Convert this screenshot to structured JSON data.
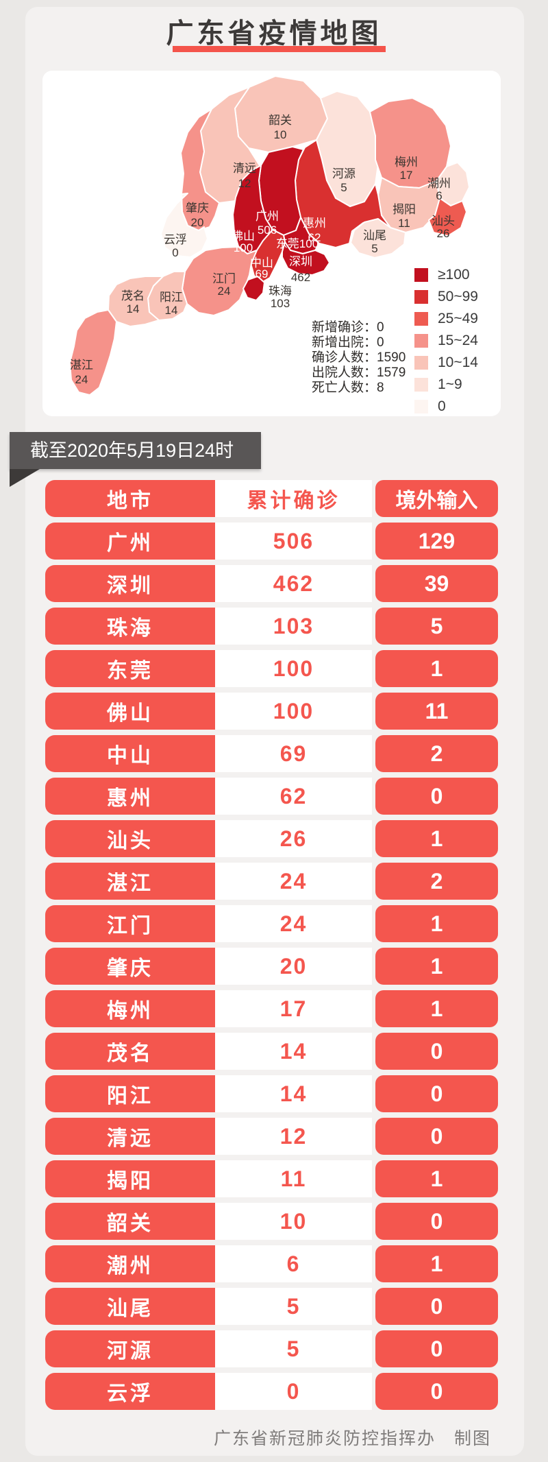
{
  "page": {
    "title": "广东省疫情地图",
    "footer": "广东省新冠肺炎防控指挥办　制图"
  },
  "banner": {
    "text": "截至2020年5月19日24时"
  },
  "colors": {
    "page_bg": "#eae8e6",
    "card_bg": "#f3f1f0",
    "accent_red": "#f4564e",
    "underline_red": "#f4544b",
    "banner_bg": "#595656",
    "banner_fold": "#3d3a39",
    "map_text_dark": "#3a3530",
    "map_text_light": "#ffffff"
  },
  "map": {
    "stats": [
      {
        "label": "新增确诊",
        "value": "0"
      },
      {
        "label": "新增出院",
        "value": "0"
      },
      {
        "label": "确诊人数",
        "value": "1590"
      },
      {
        "label": "出院人数",
        "value": "1579"
      },
      {
        "label": "死亡人数",
        "value": "8"
      }
    ],
    "legend": [
      {
        "range": "≥100",
        "color": "#c2101f"
      },
      {
        "range": "50~99",
        "color": "#d93030"
      },
      {
        "range": "25~49",
        "color": "#ee5b51"
      },
      {
        "range": "15~24",
        "color": "#f5928a"
      },
      {
        "range": "10~14",
        "color": "#f9c4b8"
      },
      {
        "range": "1~9",
        "color": "#fce2da"
      },
      {
        "range": "0",
        "color": "#fdf5f1"
      }
    ],
    "regions": [
      {
        "id": "shaoguan",
        "name": "韶关",
        "value": "10",
        "fill": "#f9c4b8",
        "c1": "#3a3530",
        "c2": "#3a3530",
        "inline": false
      },
      {
        "id": "qingyuan",
        "name": "清远",
        "value": "12",
        "fill": "#f9c4b8",
        "c1": "#3a3530",
        "c2": "#3a3530",
        "inline": false
      },
      {
        "id": "heyuan",
        "name": "河源",
        "value": "5",
        "fill": "#fce2da",
        "c1": "#3a3530",
        "c2": "#3a3530",
        "inline": false
      },
      {
        "id": "meizhou",
        "name": "梅州",
        "value": "17",
        "fill": "#f5928a",
        "c1": "#3a3530",
        "c2": "#3a3530",
        "inline": false
      },
      {
        "id": "chaozhou",
        "name": "潮州",
        "value": "6",
        "fill": "#fce2da",
        "c1": "#3a3530",
        "c2": "#3a3530",
        "inline": false
      },
      {
        "id": "jieyang",
        "name": "揭阳",
        "value": "11",
        "fill": "#f9c4b8",
        "c1": "#3a3530",
        "c2": "#3a3530",
        "inline": false
      },
      {
        "id": "shantou",
        "name": "汕头",
        "value": "26",
        "fill": "#ee5b51",
        "c1": "#3a3530",
        "c2": "#3a3530",
        "inline": false
      },
      {
        "id": "zhaoqing",
        "name": "肇庆",
        "value": "20",
        "fill": "#f5928a",
        "c1": "#3a3530",
        "c2": "#3a3530",
        "inline": false
      },
      {
        "id": "huizhou",
        "name": "惠州",
        "value": "62",
        "fill": "#d93030",
        "c1": "#ffffff",
        "c2": "#ffffff",
        "inline": false
      },
      {
        "id": "shanwei",
        "name": "汕尾",
        "value": "5",
        "fill": "#fce2da",
        "c1": "#3a3530",
        "c2": "#3a3530",
        "inline": false
      },
      {
        "id": "guangzhou",
        "name": "广州",
        "value": "506",
        "fill": "#c2101f",
        "c1": "#ffffff",
        "c2": "#ffffff",
        "inline": false
      },
      {
        "id": "foshan",
        "name": "佛山",
        "value": "100",
        "fill": "#c2101f",
        "c1": "#ffffff",
        "c2": "#ffffff",
        "inline": false
      },
      {
        "id": "yunfu",
        "name": "云浮",
        "value": "0",
        "fill": "#fdf5f1",
        "c1": "#3a3530",
        "c2": "#3a3530",
        "inline": false
      },
      {
        "id": "dongguan",
        "name": "东莞",
        "value": "100",
        "fill": "#c2101f",
        "c1": "#ffffff",
        "c2": "#ffffff",
        "inline": true
      },
      {
        "id": "zhongshan",
        "name": "中山",
        "value": "69",
        "fill": "#d93030",
        "c1": "#ffffff",
        "c2": "#ffffff",
        "inline": false
      },
      {
        "id": "shenzhen",
        "name": "深圳",
        "value": "462",
        "fill": "#c2101f",
        "c1": "#ffffff",
        "c2": "#3a3530",
        "inline": false
      },
      {
        "id": "jiangmen",
        "name": "江门",
        "value": "24",
        "fill": "#f5928a",
        "c1": "#3a3530",
        "c2": "#3a3530",
        "inline": false
      },
      {
        "id": "zhuhai",
        "name": "珠海",
        "value": "103",
        "fill": "#c2101f",
        "c1": "#3a3530",
        "c2": "#3a3530",
        "inline": false
      },
      {
        "id": "yangjiang",
        "name": "阳江",
        "value": "14",
        "fill": "#f9c4b8",
        "c1": "#3a3530",
        "c2": "#3a3530",
        "inline": false
      },
      {
        "id": "maoming",
        "name": "茂名",
        "value": "14",
        "fill": "#f9c4b8",
        "c1": "#3a3530",
        "c2": "#3a3530",
        "inline": false
      },
      {
        "id": "zhanjiang",
        "name": "湛江",
        "value": "24",
        "fill": "#f5928a",
        "c1": "#3a3530",
        "c2": "#3a3530",
        "inline": false
      }
    ]
  },
  "table": {
    "headers": [
      "地市",
      "累计确诊",
      "境外输入"
    ],
    "rows": [
      {
        "city": "广州",
        "confirmed": "506",
        "imported": "129"
      },
      {
        "city": "深圳",
        "confirmed": "462",
        "imported": "39"
      },
      {
        "city": "珠海",
        "confirmed": "103",
        "imported": "5"
      },
      {
        "city": "东莞",
        "confirmed": "100",
        "imported": "1"
      },
      {
        "city": "佛山",
        "confirmed": "100",
        "imported": "11"
      },
      {
        "city": "中山",
        "confirmed": "69",
        "imported": "2"
      },
      {
        "city": "惠州",
        "confirmed": "62",
        "imported": "0"
      },
      {
        "city": "汕头",
        "confirmed": "26",
        "imported": "1"
      },
      {
        "city": "湛江",
        "confirmed": "24",
        "imported": "2"
      },
      {
        "city": "江门",
        "confirmed": "24",
        "imported": "1"
      },
      {
        "city": "肇庆",
        "confirmed": "20",
        "imported": "1"
      },
      {
        "city": "梅州",
        "confirmed": "17",
        "imported": "1"
      },
      {
        "city": "茂名",
        "confirmed": "14",
        "imported": "0"
      },
      {
        "city": "阳江",
        "confirmed": "14",
        "imported": "0"
      },
      {
        "city": "清远",
        "confirmed": "12",
        "imported": "0"
      },
      {
        "city": "揭阳",
        "confirmed": "11",
        "imported": "1"
      },
      {
        "city": "韶关",
        "confirmed": "10",
        "imported": "0"
      },
      {
        "city": "潮州",
        "confirmed": "6",
        "imported": "1"
      },
      {
        "city": "汕尾",
        "confirmed": "5",
        "imported": "0"
      },
      {
        "city": "河源",
        "confirmed": "5",
        "imported": "0"
      },
      {
        "city": "云浮",
        "confirmed": "0",
        "imported": "0"
      }
    ]
  },
  "chart_data": {
    "type": "heatmap",
    "title": "广东省疫情地图",
    "categories": [
      "广州",
      "深圳",
      "珠海",
      "东莞",
      "佛山",
      "中山",
      "惠州",
      "汕头",
      "湛江",
      "江门",
      "肇庆",
      "梅州",
      "茂名",
      "阳江",
      "清远",
      "揭阳",
      "韶关",
      "潮州",
      "汕尾",
      "河源",
      "云浮"
    ],
    "series": [
      {
        "name": "累计确诊",
        "values": [
          506,
          462,
          103,
          100,
          100,
          69,
          62,
          26,
          24,
          24,
          20,
          17,
          14,
          14,
          12,
          11,
          10,
          6,
          5,
          5,
          0
        ]
      },
      {
        "name": "境外输入",
        "values": [
          129,
          39,
          5,
          1,
          11,
          2,
          0,
          1,
          2,
          1,
          1,
          1,
          0,
          0,
          0,
          1,
          0,
          1,
          0,
          0,
          0
        ]
      }
    ],
    "legend_bins": [
      "≥100",
      "50~99",
      "25~49",
      "15~24",
      "10~14",
      "1~9",
      "0"
    ]
  }
}
